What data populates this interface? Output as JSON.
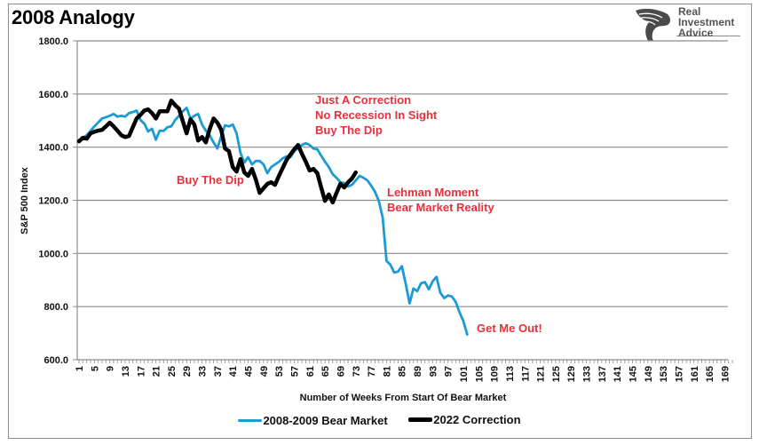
{
  "chart_data": {
    "type": "line",
    "title": "2008 Analogy",
    "xlabel": "Number of Weeks From Start Of Bear Market",
    "ylabel": "S&P 500 Index",
    "ylim": [
      600,
      1800
    ],
    "xlim": [
      1,
      171
    ],
    "yticks": [
      "600.0",
      "800.0",
      "1000.0",
      "1200.0",
      "1400.0",
      "1600.0",
      "1800.0"
    ],
    "ytick_values": [
      600,
      800,
      1000,
      1200,
      1400,
      1600,
      1800
    ],
    "xticks": [
      1,
      5,
      9,
      13,
      17,
      21,
      25,
      29,
      33,
      37,
      41,
      45,
      49,
      53,
      57,
      61,
      65,
      69,
      73,
      77,
      81,
      85,
      89,
      93,
      97,
      101,
      105,
      109,
      113,
      117,
      121,
      125,
      129,
      133,
      137,
      141,
      145,
      149,
      153,
      157,
      161,
      165,
      169
    ],
    "grid": "horizontal",
    "legend_position": "bottom",
    "series": [
      {
        "name": "2008-2009 Bear Market",
        "color": "#1b9ad6",
        "weeks": [
          1,
          3,
          5,
          7,
          9,
          10,
          11,
          12,
          13,
          14,
          15,
          16,
          17,
          18,
          19,
          20,
          21,
          22,
          23,
          24,
          25,
          26,
          27,
          28,
          29,
          30,
          31,
          32,
          33,
          34,
          35,
          36,
          37,
          38,
          39,
          40,
          41,
          42,
          43,
          44,
          45,
          46,
          47,
          48,
          49,
          50,
          51,
          52,
          53,
          54,
          55,
          56,
          57,
          58,
          59,
          60,
          61,
          62,
          63,
          64,
          65,
          66,
          67,
          68,
          69,
          70,
          71,
          72,
          73,
          74,
          75,
          76,
          77,
          78,
          79,
          80,
          81,
          82,
          83,
          84,
          85,
          86,
          87,
          88,
          89,
          90,
          91,
          92,
          93,
          94,
          95,
          96,
          97,
          98,
          99,
          100,
          101,
          102
        ],
        "values": [
          1425,
          1445,
          1478,
          1508,
          1518,
          1525,
          1515,
          1518,
          1515,
          1528,
          1532,
          1538,
          1502,
          1488,
          1459,
          1469,
          1428,
          1462,
          1461,
          1475,
          1478,
          1502,
          1518,
          1535,
          1548,
          1508,
          1518,
          1525,
          1485,
          1462,
          1445,
          1418,
          1395,
          1442,
          1482,
          1478,
          1485,
          1452,
          1378,
          1342,
          1362,
          1335,
          1348,
          1348,
          1335,
          1302,
          1325,
          1335,
          1345,
          1358,
          1365,
          1362,
          1385,
          1398,
          1408,
          1415,
          1408,
          1395,
          1392,
          1368,
          1345,
          1325,
          1298,
          1285,
          1268,
          1265,
          1252,
          1258,
          1275,
          1292,
          1285,
          1275,
          1255,
          1232,
          1198,
          1135,
          972,
          958,
          928,
          932,
          952,
          885,
          812,
          868,
          858,
          888,
          892,
          865,
          895,
          912,
          852,
          832,
          842,
          838,
          818,
          778,
          745,
          695
        ]
      },
      {
        "name": "2022 Correction",
        "color": "#000000",
        "weeks": [
          1,
          2,
          3,
          4,
          5,
          6,
          7,
          8,
          9,
          10,
          11,
          12,
          13,
          14,
          15,
          16,
          17,
          18,
          19,
          20,
          21,
          22,
          23,
          24,
          25,
          26,
          27,
          28,
          29,
          30,
          31,
          32,
          33,
          34,
          35,
          36,
          37,
          38,
          39,
          40,
          41,
          42,
          43,
          44,
          45,
          46,
          47,
          48,
          49,
          50,
          51,
          52,
          53,
          54,
          55,
          56,
          57,
          58,
          59,
          60,
          61,
          62,
          63,
          64,
          65,
          66,
          67,
          68,
          69,
          70,
          71,
          72,
          73
        ],
        "values": [
          1422,
          1435,
          1432,
          1452,
          1458,
          1462,
          1465,
          1478,
          1492,
          1478,
          1462,
          1445,
          1438,
          1442,
          1475,
          1508,
          1522,
          1538,
          1542,
          1528,
          1508,
          1535,
          1535,
          1535,
          1575,
          1558,
          1545,
          1498,
          1452,
          1505,
          1485,
          1425,
          1438,
          1418,
          1468,
          1508,
          1492,
          1465,
          1395,
          1385,
          1325,
          1308,
          1355,
          1305,
          1292,
          1318,
          1278,
          1228,
          1245,
          1262,
          1268,
          1258,
          1292,
          1322,
          1352,
          1372,
          1392,
          1408,
          1375,
          1345,
          1312,
          1318,
          1302,
          1248,
          1198,
          1222,
          1192,
          1228,
          1262,
          1248,
          1268,
          1282,
          1305
        ]
      }
    ],
    "annotations": [
      {
        "lines": [
          "Just A Correction",
          "No Recession In Sight",
          "Buy The Dip"
        ]
      },
      {
        "lines": [
          "Buy The Dip"
        ]
      },
      {
        "lines": [
          "Lehman Moment",
          "Bear Market Reality"
        ]
      },
      {
        "lines": [
          "Get Me Out!"
        ]
      }
    ],
    "annotation_color": "#e8303b"
  },
  "logo": {
    "lines": [
      "Real",
      "Investment",
      "Advice"
    ]
  }
}
